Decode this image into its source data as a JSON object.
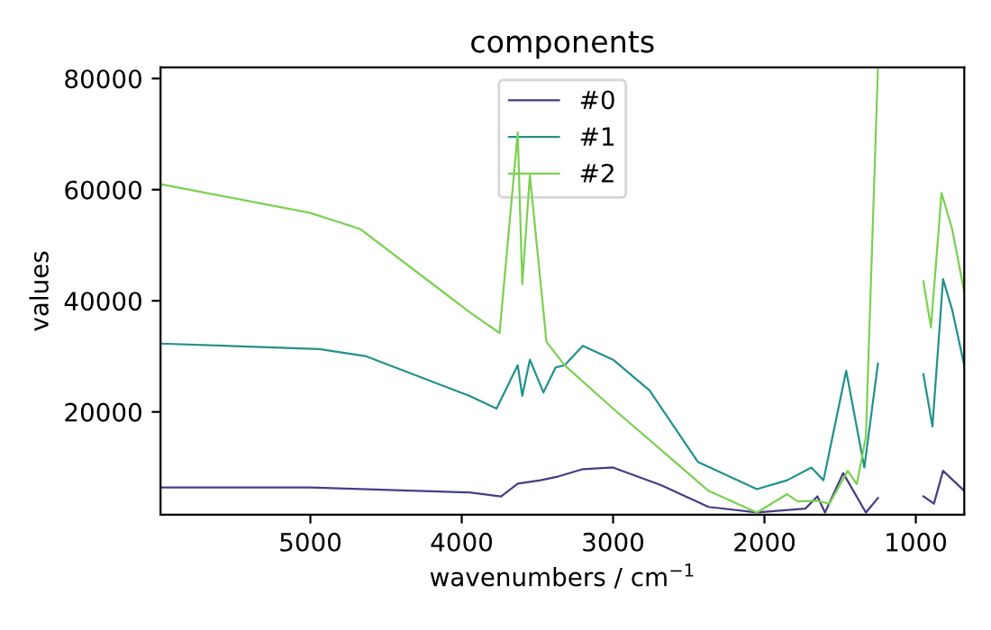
{
  "chart_data": {
    "type": "line",
    "title": "components",
    "xlabel": "wavenumbers / cm$^{−1}$",
    "ylabel": "values",
    "xlim": [
      5990,
      680
    ],
    "ylim": [
      1500,
      82000
    ],
    "xticks": [
      5000,
      4000,
      3000,
      2000,
      1000
    ],
    "yticks": [
      20000,
      40000,
      60000,
      80000
    ],
    "grid": false,
    "legend": "top",
    "marker": "none",
    "line_style": "solid",
    "series": [
      {
        "name": "#0",
        "color": "#433e85",
        "x": [
          5990,
          5000,
          3950,
          3740,
          3630,
          3480,
          3360,
          3200,
          3000,
          2680,
          2370,
          2050,
          1730,
          1650,
          1600,
          1480,
          1330,
          1250,
          1100,
          950,
          880,
          820,
          680
        ],
        "values": [
          6400,
          6400,
          5500,
          4800,
          7100,
          7700,
          8400,
          9700,
          10000,
          6800,
          2900,
          1900,
          2600,
          4800,
          1900,
          9000,
          1900,
          4500,
          null,
          4800,
          3500,
          9400,
          5800
        ]
      },
      {
        "name": "#1",
        "color": "#21918c",
        "x": [
          5990,
          4940,
          4630,
          3950,
          3770,
          3630,
          3600,
          3550,
          3460,
          3380,
          3320,
          3200,
          3000,
          2760,
          2440,
          2050,
          1850,
          1690,
          1610,
          1460,
          1340,
          1250,
          1100,
          950,
          890,
          820,
          760,
          680
        ],
        "values": [
          32300,
          31300,
          30000,
          22900,
          20600,
          28400,
          22900,
          29400,
          23500,
          28000,
          28400,
          31900,
          29400,
          23900,
          11000,
          6100,
          7700,
          10000,
          7700,
          27400,
          10000,
          28700,
          null,
          26800,
          17400,
          43900,
          38400,
          28400
        ]
      },
      {
        "name": "#2",
        "color": "#7ad151",
        "x": [
          5990,
          5000,
          4670,
          3950,
          3750,
          3630,
          3600,
          3550,
          3440,
          3320,
          3000,
          2370,
          2050,
          1850,
          1780,
          1650,
          1570,
          1450,
          1390,
          1330,
          1250,
          1100,
          950,
          900,
          830,
          760,
          680
        ],
        "values": [
          61000,
          55800,
          52900,
          38000,
          34200,
          70300,
          43000,
          62600,
          32600,
          28400,
          20600,
          5800,
          1900,
          5200,
          3900,
          4000,
          3500,
          9400,
          7000,
          15500,
          82000,
          null,
          43500,
          35200,
          59400,
          52900,
          41600
        ]
      }
    ]
  }
}
